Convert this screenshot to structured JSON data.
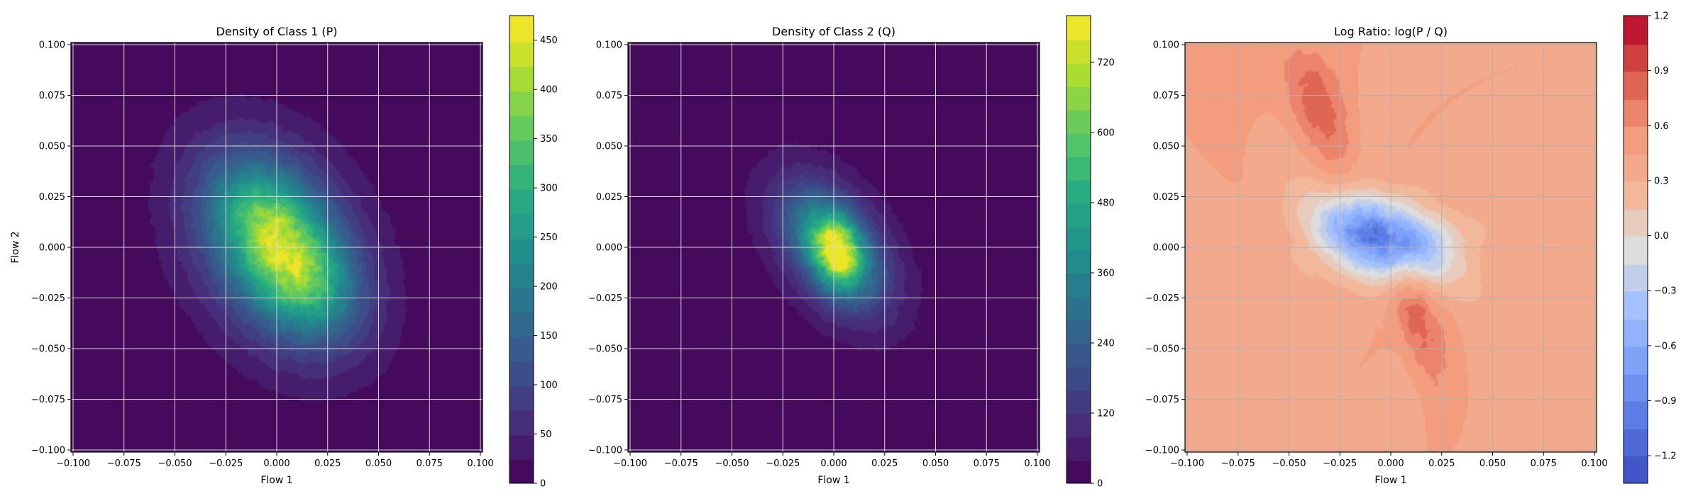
{
  "chart_data": [
    {
      "type": "heatmap",
      "subtype": "filled-contour",
      "title": "Density of Class 1 (P)",
      "xlabel": "Flow 1",
      "ylabel": "Flow 2",
      "xlim": [
        -0.1,
        0.1
      ],
      "ylim": [
        -0.1,
        0.1
      ],
      "xticks": [
        "−0.100",
        "−0.075",
        "−0.050",
        "−0.025",
        "0.000",
        "0.025",
        "0.050",
        "0.075",
        "0.100"
      ],
      "yticks": [
        "−0.100",
        "−0.075",
        "−0.050",
        "−0.025",
        "0.000",
        "0.025",
        "0.050",
        "0.075",
        "0.100"
      ],
      "grid": true,
      "colormap": "viridis",
      "colorbar": {
        "min": 0,
        "max": 475,
        "levels": 19,
        "ticks": [
          0,
          50,
          100,
          150,
          200,
          250,
          300,
          350,
          400,
          450
        ]
      },
      "peaks": [
        {
          "x": -0.005,
          "y": 0.013,
          "value": 300
        },
        {
          "x": 0.012,
          "y": -0.015,
          "value": 330
        }
      ],
      "spread": {
        "sx": 0.03,
        "sy": 0.036,
        "rho": -0.3
      }
    },
    {
      "type": "heatmap",
      "subtype": "filled-contour",
      "title": "Density of Class 2 (Q)",
      "xlabel": "Flow 1",
      "ylabel": "",
      "xlim": [
        -0.1,
        0.1
      ],
      "ylim": [
        -0.1,
        0.1
      ],
      "xticks": [
        "−0.100",
        "−0.075",
        "−0.050",
        "−0.025",
        "0.000",
        "0.025",
        "0.050",
        "0.075",
        "0.100"
      ],
      "yticks": [
        "−0.100",
        "−0.075",
        "−0.050",
        "−0.025",
        "0.000",
        "0.025",
        "0.050",
        "0.075",
        "0.100"
      ],
      "grid": true,
      "colormap": "viridis",
      "colorbar": {
        "min": 0,
        "max": 800,
        "levels": 20,
        "ticks": [
          0,
          120,
          240,
          360,
          480,
          600,
          720
        ]
      },
      "peaks": [
        {
          "x": 0.0,
          "y": 0.005,
          "value": 650
        },
        {
          "x": 0.0,
          "y": -0.005,
          "value": 720
        }
      ],
      "spread": {
        "sx": 0.022,
        "sy": 0.026,
        "rho": -0.45
      }
    },
    {
      "type": "heatmap",
      "subtype": "filled-contour",
      "title": "Log Ratio: log(P / Q)",
      "xlabel": "Flow 1",
      "ylabel": "",
      "xlim": [
        -0.1,
        0.1
      ],
      "ylim": [
        -0.1,
        0.1
      ],
      "xticks": [
        "−0.100",
        "−0.075",
        "−0.050",
        "−0.025",
        "0.000",
        "0.025",
        "0.050",
        "0.075",
        "0.100"
      ],
      "yticks": [
        "−0.100",
        "−0.075",
        "−0.050",
        "−0.025",
        "0.000",
        "0.025",
        "0.050",
        "0.075",
        "0.100"
      ],
      "grid": true,
      "colormap": "coolwarm",
      "colorbar": {
        "min": -1.35,
        "max": 1.2,
        "levels": 17,
        "ticks": [
          "−1.2",
          "−0.9",
          "−0.6",
          "−0.3",
          "0.0",
          "0.3",
          "0.6",
          "0.9",
          "1.2"
        ],
        "tick_values": [
          -1.2,
          -0.9,
          -0.6,
          -0.3,
          0.0,
          0.3,
          0.6,
          0.9,
          1.2
        ]
      },
      "background_value": 0.4,
      "regions": [
        {
          "x": -0.005,
          "y": 0.005,
          "value": -1.05,
          "kind": "min"
        },
        {
          "x": 0.01,
          "y": -0.03,
          "value": 0.8,
          "kind": "max"
        },
        {
          "x": -0.04,
          "y": 0.07,
          "value": 0.7,
          "kind": "max"
        }
      ]
    }
  ]
}
